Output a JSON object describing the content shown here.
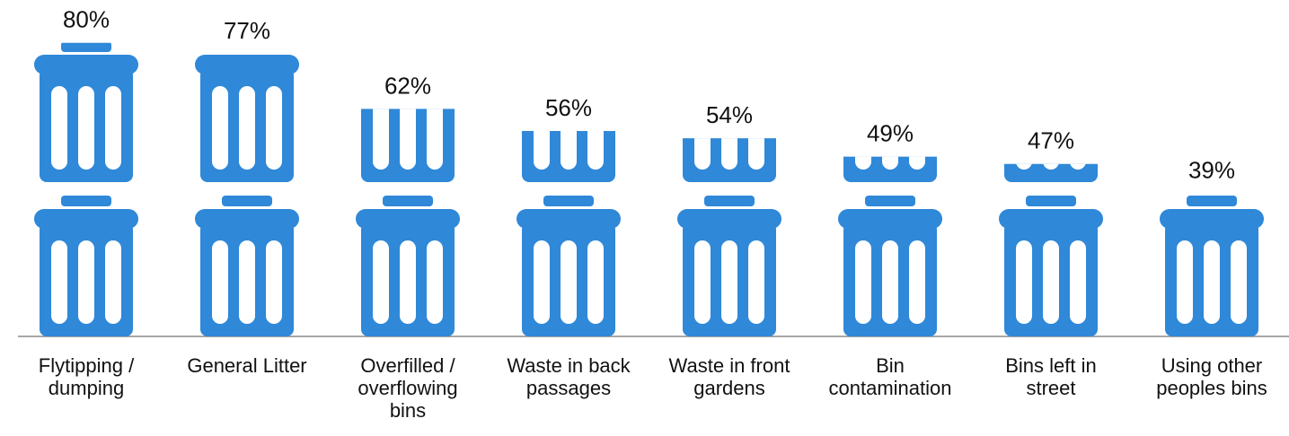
{
  "chart_data": {
    "type": "pictograph",
    "categories": [
      "Flytipping /\ndumping",
      "General Litter",
      "Overfilled /\noverflowing\nbins",
      "Waste in back\npassages",
      "Waste in front\ngardens",
      "Bin\ncontamination",
      "Bins left in\nstreet",
      "Using other\npeoples bins"
    ],
    "values": [
      80,
      77,
      62,
      56,
      54,
      49,
      47,
      39
    ],
    "value_labels": [
      "80%",
      "77%",
      "62%",
      "56%",
      "54%",
      "49%",
      "47%",
      "39%"
    ],
    "color": "#2f88d8"
  }
}
